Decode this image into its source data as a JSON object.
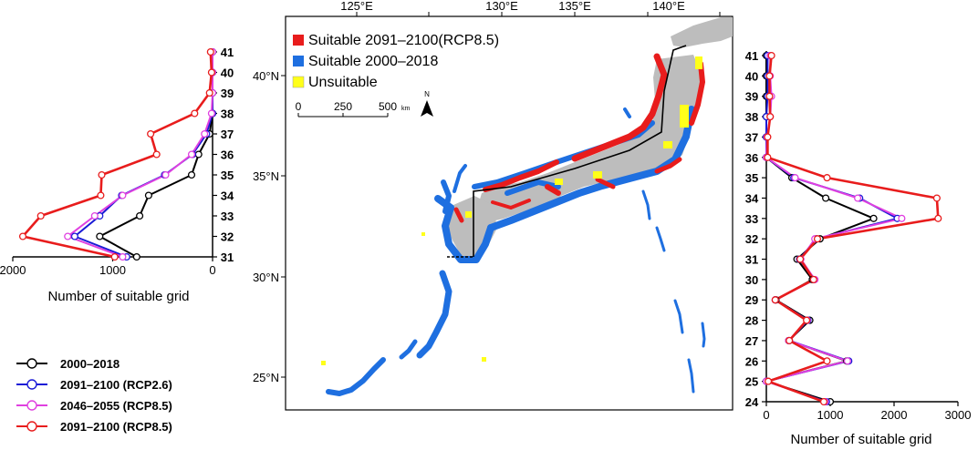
{
  "chart_data": [
    {
      "type": "line",
      "orientation": "horizontal-profile",
      "xlabel": "Number of suitable grid",
      "x_ticks": [
        2000,
        1000,
        0
      ],
      "xlim": [
        2000,
        0
      ],
      "y_ticks": [
        31,
        32,
        33,
        34,
        35,
        36,
        37,
        38,
        39,
        40,
        41
      ],
      "ylim": [
        31,
        41
      ],
      "y": [
        31,
        32,
        33,
        34,
        35,
        36,
        37,
        38,
        39,
        40,
        41
      ],
      "series": [
        {
          "name": "2000–2018",
          "color": "#000000",
          "values": [
            760,
            1130,
            730,
            640,
            210,
            140,
            30,
            0,
            0,
            0,
            0
          ]
        },
        {
          "name": "2091–2100 (RCP2.6)",
          "color": "#1a1ad6",
          "values": [
            860,
            1380,
            1130,
            910,
            480,
            200,
            60,
            0,
            0,
            0,
            0
          ]
        },
        {
          "name": "2046–2055 (RCP8.5)",
          "color": "#e040e0",
          "values": [
            900,
            1450,
            1180,
            900,
            470,
            210,
            80,
            10,
            0,
            0,
            0
          ]
        },
        {
          "name": "2091–2100 (RCP8.5)",
          "color": "#e81c1c",
          "values": [
            980,
            1900,
            1720,
            1120,
            1110,
            560,
            620,
            180,
            30,
            10,
            20
          ]
        }
      ]
    },
    {
      "type": "line",
      "orientation": "horizontal-profile",
      "xlabel": "Number of suitable grid",
      "x_ticks": [
        0,
        1000,
        2000,
        3000
      ],
      "xlim": [
        0,
        3000
      ],
      "y_ticks": [
        24,
        25,
        26,
        27,
        28,
        29,
        30,
        31,
        32,
        33,
        34,
        35,
        36,
        37,
        38,
        39,
        40,
        41
      ],
      "ylim": [
        24,
        41
      ],
      "y": [
        24,
        25,
        26,
        27,
        28,
        29,
        30,
        31,
        32,
        33,
        34,
        35,
        36,
        37,
        38,
        39,
        40,
        41
      ],
      "series": [
        {
          "name": "2000–2018",
          "color": "#000000",
          "values": [
            1000,
            0,
            1260,
            350,
            680,
            150,
            720,
            480,
            840,
            1680,
            930,
            400,
            0,
            0,
            0,
            0,
            0,
            0
          ]
        },
        {
          "name": "2091–2100 (RCP2.6)",
          "color": "#1a1ad6",
          "values": [
            940,
            0,
            1290,
            360,
            650,
            140,
            740,
            520,
            780,
            2050,
            1460,
            430,
            0,
            0,
            0,
            20,
            20,
            20
          ]
        },
        {
          "name": "2046–2055 (RCP8.5)",
          "color": "#e040e0",
          "values": [
            920,
            0,
            1270,
            350,
            640,
            140,
            760,
            540,
            760,
            2120,
            1430,
            450,
            0,
            10,
            60,
            80,
            60,
            60
          ]
        },
        {
          "name": "2091–2100 (RCP8.5)",
          "color": "#e81c1c",
          "values": [
            900,
            30,
            950,
            360,
            630,
            140,
            740,
            530,
            800,
            2690,
            2670,
            950,
            20,
            20,
            60,
            50,
            50,
            80
          ]
        }
      ]
    }
  ],
  "legend": {
    "entries": [
      {
        "label": "2000–2018",
        "color": "#000000"
      },
      {
        "label": "2091–2100 (RCP2.6)",
        "color": "#1a1ad6"
      },
      {
        "label": "2046–2055 (RCP8.5)",
        "color": "#e040e0"
      },
      {
        "label": "2091–2100 (RCP8.5)",
        "color": "#e81c1c"
      }
    ]
  },
  "map": {
    "lon_ticks": [
      "125°E",
      "130°E",
      "135°E",
      "140°E"
    ],
    "lat_ticks": [
      "40°N",
      "35°N",
      "30°N",
      "25°N"
    ],
    "legend": [
      {
        "label": "Suitable 2091–2100(RCP8.5)",
        "color": "#e81c1c"
      },
      {
        "label": "Suitable 2000–2018",
        "color": "#1e6fe0"
      },
      {
        "label": "Unsuitable",
        "color": "#ffff1a"
      }
    ],
    "scalebar": {
      "labels": [
        "0",
        "250",
        "500"
      ],
      "unit": "km"
    },
    "north_arrow": "N"
  }
}
